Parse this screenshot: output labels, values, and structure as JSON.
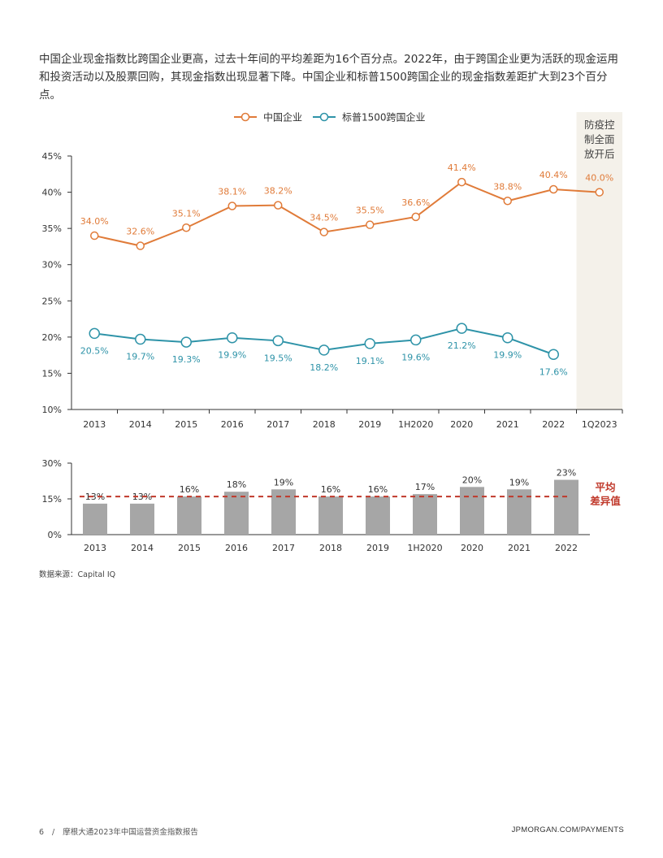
{
  "intro_text": "中国企业现金指数比跨国企业更高，过去十年间的平均差距为16个百分点。2022年，由于跨国企业更为活跃的现金运用和投资活动以及股票回购，其现金指数出现显著下降。中国企业和标普1500跨国企业的现金指数差距扩大到23个百分点。",
  "colors": {
    "china": "#E07B39",
    "sp1500": "#2E93A8",
    "bar": "#A6A6A6",
    "avg_line": "#C0392B",
    "shade": "#F4F1EA",
    "axis": "#333333"
  },
  "chart_data": [
    {
      "type": "line",
      "categories": [
        "2013",
        "2014",
        "2015",
        "2016",
        "2017",
        "2018",
        "2019",
        "1H2020",
        "2020",
        "2021",
        "2022",
        "1Q2023"
      ],
      "series": [
        {
          "name": "中国企业",
          "values": [
            34.0,
            32.6,
            35.1,
            38.1,
            38.2,
            34.5,
            35.5,
            36.6,
            41.4,
            38.8,
            40.4,
            40.0
          ],
          "labels": [
            "34.0%",
            "32.6%",
            "35.1%",
            "38.1%",
            "38.2%",
            "34.5%",
            "35.5%",
            "36.6%",
            "41.4%",
            "38.8%",
            "40.4%",
            "40.0%"
          ]
        },
        {
          "name": "标普1500跨国企业",
          "values": [
            20.5,
            19.7,
            19.3,
            19.9,
            19.5,
            18.2,
            19.1,
            19.6,
            21.2,
            19.9,
            17.6,
            null
          ],
          "labels": [
            "20.5%",
            "19.7%",
            "19.3%",
            "19.9%",
            "19.5%",
            "18.2%",
            "19.1%",
            "19.6%",
            "21.2%",
            "19.9%",
            "17.6%",
            ""
          ]
        }
      ],
      "yticks": [
        "10%",
        "15%",
        "20%",
        "25%",
        "30%",
        "35%",
        "40%",
        "45%"
      ],
      "ylim": [
        10,
        45
      ],
      "annotation": [
        "防疫控",
        "制全面",
        "放开后"
      ],
      "legend": "top-center"
    },
    {
      "type": "bar",
      "categories": [
        "2013",
        "2014",
        "2015",
        "2016",
        "2017",
        "2018",
        "2019",
        "1H2020",
        "2020",
        "2021",
        "2022"
      ],
      "values": [
        13,
        13,
        16,
        18,
        19,
        16,
        16,
        17,
        20,
        19,
        23
      ],
      "labels": [
        "13%",
        "13%",
        "16%",
        "18%",
        "19%",
        "16%",
        "16%",
        "17%",
        "20%",
        "19%",
        "23%"
      ],
      "yticks": [
        "0%",
        "15%",
        "30%"
      ],
      "ylim": [
        0,
        30
      ],
      "average": 16,
      "average_label": [
        "平均",
        "差异值"
      ]
    }
  ],
  "source": "数据来源：Capital IQ",
  "footer": {
    "page_number": "6",
    "separator": "/",
    "title": "摩根大通2023年中国运营资金指数报告",
    "website": "JPMORGAN.COM/PAYMENTS"
  }
}
